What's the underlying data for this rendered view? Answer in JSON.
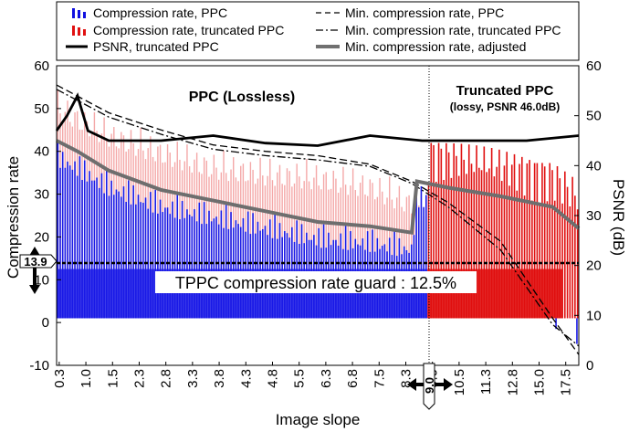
{
  "chart_data": {
    "type": "bar",
    "xlabel": "Image slope",
    "ylabel_left": "Compression rate",
    "ylabel_right": "PSNR (dB)",
    "ylim_left": [
      -10,
      60
    ],
    "ylim_right": [
      0,
      60
    ],
    "yticks_left": [
      "60",
      "50",
      "40",
      "30",
      "20",
      "10",
      "0",
      "-10"
    ],
    "yticks_right": [
      "60",
      "50",
      "40",
      "30",
      "20",
      "10",
      "0"
    ],
    "xticks": [
      "0.3",
      "1.0",
      "1.5",
      "2.3",
      "2.8",
      "3.3",
      "3.8",
      "4.3",
      "4.8",
      "5.5",
      "6.3",
      "6.8",
      "7.5",
      "8.3",
      "9.0",
      "10.5",
      "11.3",
      "12.8",
      "15.0",
      "17.5"
    ],
    "legend": [
      {
        "label": "Compression rate, PPC",
        "color": "#1010e0",
        "style": "bars"
      },
      {
        "label": "Compression rate, truncated PPC",
        "color": "#e01010",
        "style": "bars"
      },
      {
        "label": "PSNR, truncated PPC",
        "color": "#000000",
        "style": "solid"
      },
      {
        "label": "Min. compression rate, PPC",
        "color": "#000000",
        "style": "dash"
      },
      {
        "label": "Min. compression rate, truncated PPC",
        "color": "#000000",
        "style": "dashdot"
      },
      {
        "label": "Min. compression rate, adjusted",
        "color": "#707070",
        "style": "thick"
      }
    ],
    "regions": {
      "lossless_label": "PPC (Lossless)",
      "truncated_label": "Truncated PPC",
      "truncated_sublabel": "(lossy, PSNR 46.0dB)",
      "split_at": "9.0"
    },
    "guard": {
      "value": 13.9,
      "label": "TPPC compression rate guard : 12.5%",
      "marker_label": "13.9"
    },
    "split_marker_label": "9.0",
    "colors": {
      "ppc_dark": "#1a1ae6",
      "ppc_light": "#f4a8a8",
      "tppc": "#e01010",
      "adjusted": "#6e6e6e"
    },
    "series": [
      {
        "name": "Min. compression rate, adjusted",
        "x": [
          0,
          0.04,
          0.1,
          0.2,
          0.3,
          0.4,
          0.5,
          0.6,
          0.68,
          0.69,
          0.75,
          0.85,
          0.95,
          1.0
        ],
        "y": [
          42.5,
          40,
          35.5,
          31,
          28.5,
          26,
          23.5,
          22.5,
          21,
          33,
          31.5,
          29.5,
          27,
          22
        ]
      },
      {
        "name": "Min. compression rate, PPC",
        "x": [
          0,
          0.1,
          0.2,
          0.3,
          0.4,
          0.5,
          0.6,
          0.68,
          0.75,
          0.85,
          0.95,
          1.0
        ],
        "y": [
          55.5,
          49,
          45,
          41.5,
          40,
          39,
          37,
          33,
          28,
          19,
          1,
          -7.5
        ]
      },
      {
        "name": "Min. compression rate, truncated PPC",
        "x": [
          0,
          0.1,
          0.2,
          0.3,
          0.4,
          0.5,
          0.6,
          0.68,
          0.75,
          0.85,
          0.95,
          1.0
        ],
        "y": [
          54.5,
          48,
          44,
          40.5,
          39,
          38,
          36.5,
          32.5,
          27,
          17,
          -0.5,
          -5.5
        ]
      },
      {
        "name": "PSNR, truncated PPC",
        "x": [
          0,
          0.02,
          0.04,
          0.06,
          0.1,
          0.2,
          0.3,
          0.4,
          0.5,
          0.6,
          0.7,
          0.8,
          0.9,
          1.0
        ],
        "y": [
          47,
          50,
          54,
          47,
          45,
          45,
          46,
          44.5,
          44,
          46,
          45,
          45,
          45,
          46
        ]
      }
    ]
  }
}
